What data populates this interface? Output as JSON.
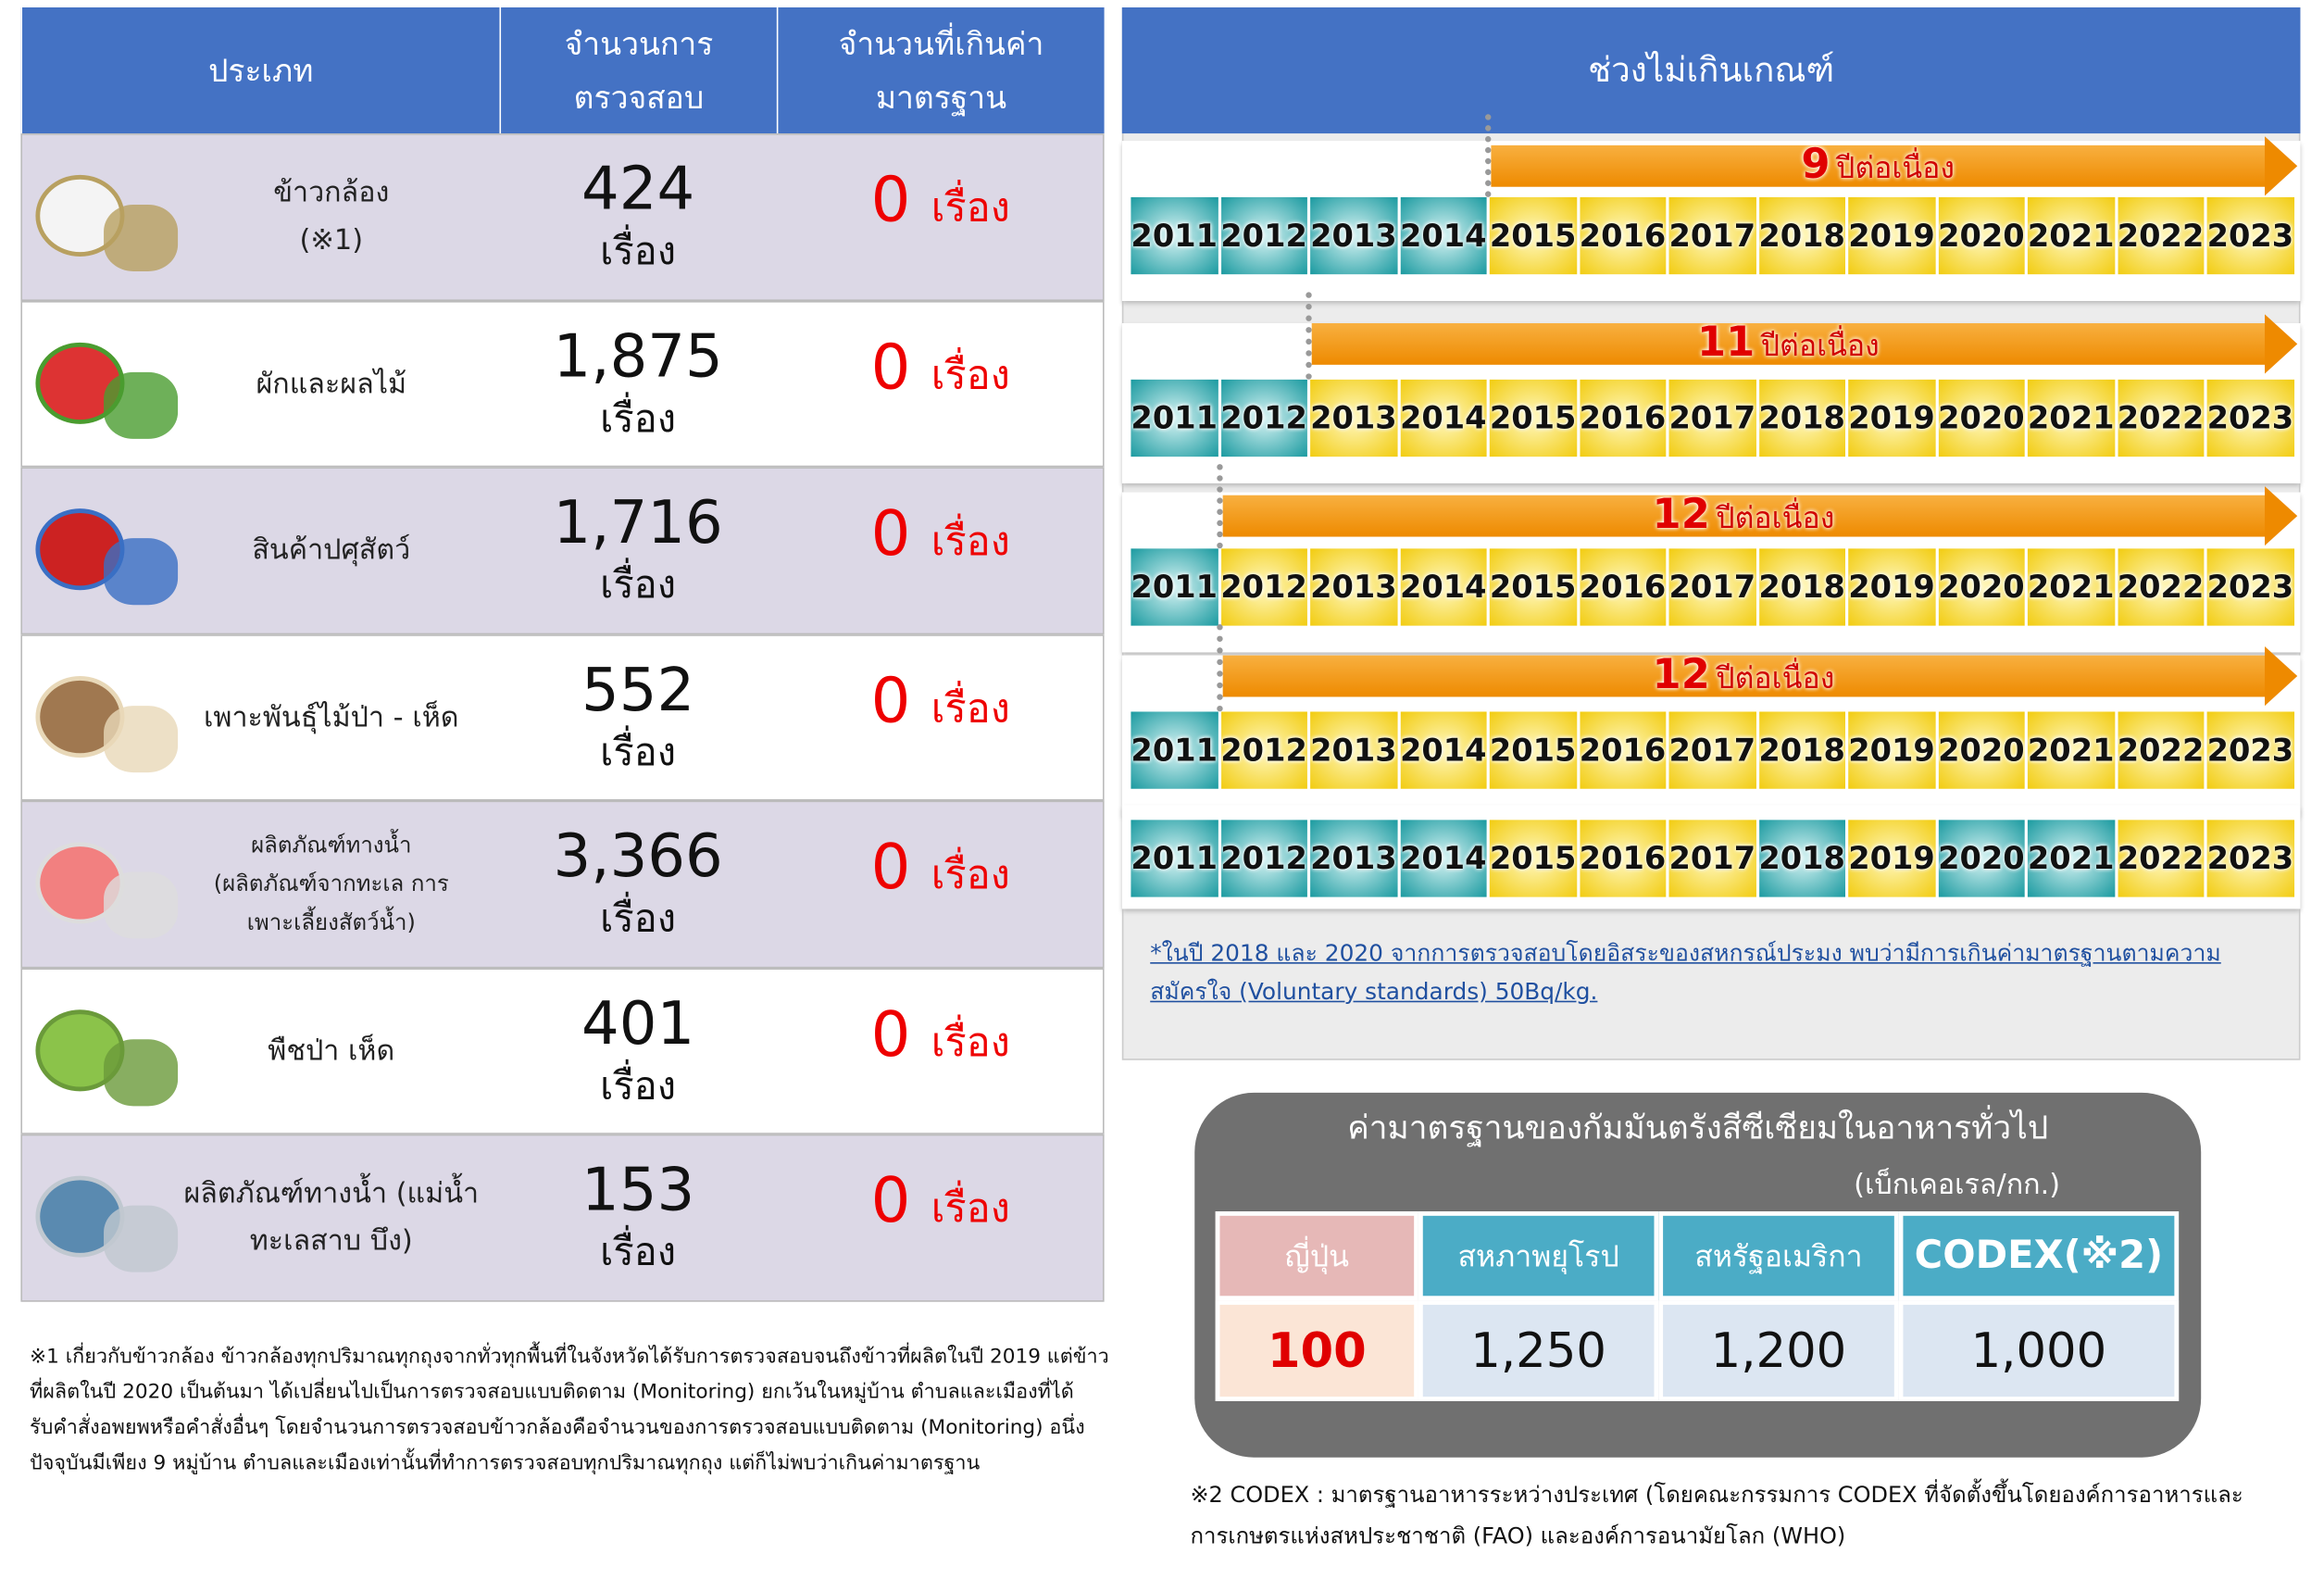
{
  "table": {
    "headers": [
      "ประเภท",
      [
        "จำนวนการ",
        "ตรวจสอบ"
      ],
      [
        "จำนวนที่เกินค่า",
        "มาตรฐาน"
      ]
    ],
    "rows": [
      {
        "label": [
          "ข้าวกล้อง",
          "(※1)"
        ],
        "count": "424",
        "unit": "เรื่อง",
        "exceeded": 0,
        "exceeded_unit": "เรื่อง"
      },
      {
        "label": [
          "ผักและผลไม้"
        ],
        "count": "1,875",
        "unit": "เรื่อง",
        "exceeded": 0,
        "exceeded_unit": "เรื่อง"
      },
      {
        "label": [
          "สินค้าปศุสัตว์"
        ],
        "count": "1,716",
        "unit": "เรื่อง",
        "exceeded": 0,
        "exceeded_unit": "เรื่อง"
      },
      {
        "label": [
          "เพาะพันธุ์ไม้ป่า - เห็ด"
        ],
        "count": "552",
        "unit": "เรื่อง",
        "exceeded": 0,
        "exceeded_unit": "เรื่อง"
      },
      {
        "label": [
          "ผลิตภัณฑ์ทางน้ำ",
          "(ผลิตภัณฑ์จากทะเล การ",
          "เพาะเลี้ยงสัตว์น้ำ)"
        ],
        "count": "3,366",
        "unit": "เรื่อง",
        "exceeded": 0,
        "exceeded_unit": "เรื่อง"
      },
      {
        "label": [
          "พืชป่า เห็ด"
        ],
        "count": "401",
        "unit": "เรื่อง",
        "exceeded": 0,
        "exceeded_unit": "เรื่อง"
      },
      {
        "label": [
          "ผลิตภัณฑ์ทางน้ำ (แม่น้ำ",
          "ทะเลสาบ บึง)"
        ],
        "count": "153",
        "unit": "เรื่อง",
        "exceeded": 0,
        "exceeded_unit": "เรื่อง"
      }
    ]
  },
  "timeline": {
    "title": "ช่วงไม่เกินเกณฑ์",
    "rows": [
      {
        "years": [
          2011,
          2012,
          2013,
          2014,
          2015,
          2016,
          2017,
          2018,
          2019,
          2020,
          2021,
          2022,
          2023
        ],
        "highlight": [
          true,
          true,
          true,
          true,
          false,
          false,
          false,
          false,
          false,
          false,
          false,
          false,
          false
        ],
        "streak": 9,
        "streak_label": "ปีต่อเนื่อง"
      },
      {
        "years": [
          2011,
          2012,
          2013,
          2014,
          2015,
          2016,
          2017,
          2018,
          2019,
          2020,
          2021,
          2022,
          2023
        ],
        "highlight": [
          true,
          true,
          false,
          false,
          false,
          false,
          false,
          false,
          false,
          false,
          false,
          false,
          false
        ],
        "streak": 11,
        "streak_label": "ปีต่อเนื่อง"
      },
      {
        "years": [
          2011,
          2012,
          2013,
          2014,
          2015,
          2016,
          2017,
          2018,
          2019,
          2020,
          2021,
          2022,
          2023
        ],
        "highlight": [
          true,
          false,
          false,
          false,
          false,
          false,
          false,
          false,
          false,
          false,
          false,
          false,
          false
        ],
        "streak": 12,
        "streak_label": "ปีต่อเนื่อง"
      },
      {
        "years": [
          2011,
          2012,
          2013,
          2014,
          2015,
          2016,
          2017,
          2018,
          2019,
          2020,
          2021,
          2022,
          2023
        ],
        "highlight": [
          true,
          false,
          false,
          false,
          false,
          false,
          false,
          false,
          false,
          false,
          false,
          false,
          false
        ],
        "streak": 12,
        "streak_label": "ปีต่อเนื่อง"
      },
      {
        "years": [
          2011,
          2012,
          2013,
          2014,
          2015,
          2016,
          2017,
          2018,
          2019,
          2020,
          2021,
          2022,
          2023
        ],
        "highlight": [
          true,
          true,
          true,
          true,
          false,
          false,
          false,
          true,
          false,
          true,
          true,
          false,
          false
        ]
      }
    ],
    "note": "*ในปี 2018 และ 2020 จากการตรวจสอบโดยอิสระของสหกรณ์ประมง พบว่ามีการเกินค่ามาตรฐานตามความสมัครใจ (Voluntary standards) 50Bq/kg."
  },
  "standards": {
    "title": "ค่ามาตรฐานของกัมมันตรังสีซีเซียมในอาหารทั่วไป",
    "unit": "(เบ็กเคอเรล/กก.)",
    "headers": [
      "ญี่ปุ่น",
      "สหภาพยุโรป",
      "สหรัฐอเมริกา",
      "CODEX(※2)"
    ],
    "values": [
      "100",
      "1,250",
      "1,200",
      "1,000"
    ]
  },
  "footnotes": [
    "※1 เกี่ยวกับข้าวกล้อง ข้าวกล้องทุกปริมาณทุกถุงจากทั่วทุกพื้นที่ในจังหวัดได้รับการตรวจสอบจนถึงข้าวที่ผลิตในปี 2019 แต่ข้าวที่ผลิตในปี 2020 เป็นต้นมา ได้เปลี่ยนไปเป็นการตรวจสอบแบบติดตาม (Monitoring) ยกเว้นในหมู่บ้าน ตำบลและเมืองที่ได้รับคำสั่งอพยพหรือคำสั่งอื่นๆ โดยจำนวนการตรวจสอบข้าวกล้องคือจำนวนของการตรวจสอบแบบติดตาม (Monitoring) อนึ่ง ปัจจุบันมีเพียง 9 หมู่บ้าน ตำบลและเมืองเท่านั้นที่ทำการตรวจสอบทุกปริมาณทุกถุง แต่ก็ไม่พบว่าเกินค่ามาตรฐาน",
    "※2 CODEX : มาตรฐานอาหารระหว่างประเทศ (โดยคณะกรรมการ CODEX ที่จัดตั้งขึ้นโดยองค์การอาหารและการเกษตรแห่งสหประชาชาติ (FAO) และองค์การอนามัยโลก (WHO)"
  ]
}
